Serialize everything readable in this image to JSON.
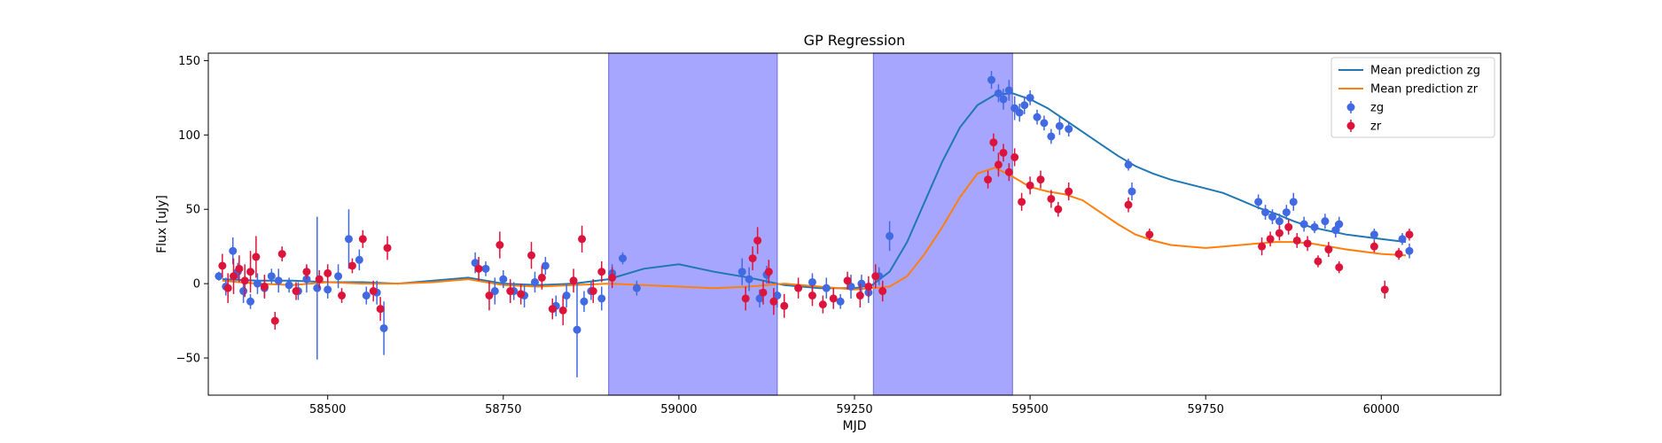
{
  "chart_data": {
    "type": "scatter",
    "title": "GP Regression",
    "xlabel": "MJD",
    "ylabel": "Flux [uJy]",
    "xlim": [
      58330,
      60170
    ],
    "ylim": [
      -75,
      155
    ],
    "xticks": [
      58500,
      58750,
      59000,
      59250,
      59500,
      59750,
      60000
    ],
    "yticks": [
      -50,
      0,
      50,
      100,
      150
    ],
    "grid": false,
    "legend_position": "top-right",
    "shaded_regions": [
      {
        "x0": 58900,
        "x1": 59140,
        "color": "#a6a6ff"
      },
      {
        "x0": 59277,
        "x1": 59475,
        "color": "#a6a6ff"
      }
    ],
    "series": [
      {
        "name": "Mean prediction zg",
        "kind": "line",
        "color": "#1f77b4",
        "x": [
          58350,
          58400,
          58450,
          58500,
          58550,
          58600,
          58650,
          58700,
          58750,
          58800,
          58850,
          58900,
          58950,
          59000,
          59050,
          59100,
          59150,
          59200,
          59250,
          59275,
          59300,
          59325,
          59350,
          59375,
          59400,
          59425,
          59450,
          59475,
          59500,
          59525,
          59550,
          59575,
          59600,
          59625,
          59650,
          59675,
          59700,
          59725,
          59750,
          59775,
          59800,
          59825,
          59850,
          59875,
          59900,
          59950,
          60000,
          60035
        ],
        "y": [
          3,
          2,
          2,
          1,
          1,
          0,
          2,
          4,
          0,
          -1,
          0,
          3,
          10,
          13,
          8,
          4,
          -1,
          -3,
          -3,
          -1,
          8,
          28,
          55,
          82,
          105,
          120,
          127,
          128,
          124,
          118,
          110,
          102,
          94,
          86,
          79,
          74,
          70,
          67,
          64,
          61,
          56,
          51,
          47,
          42,
          38,
          33,
          30,
          28
        ]
      },
      {
        "name": "Mean prediction zr",
        "kind": "line",
        "color": "#ff7f0e",
        "x": [
          58350,
          58400,
          58450,
          58500,
          58550,
          58600,
          58650,
          58700,
          58750,
          58800,
          58850,
          58900,
          58950,
          59000,
          59050,
          59100,
          59150,
          59200,
          59250,
          59275,
          59300,
          59325,
          59350,
          59375,
          59400,
          59425,
          59450,
          59475,
          59500,
          59525,
          59550,
          59575,
          59600,
          59625,
          59650,
          59675,
          59700,
          59725,
          59750,
          59775,
          59800,
          59825,
          59850,
          59875,
          59900,
          59950,
          60000,
          60035
        ],
        "y": [
          2,
          0,
          -1,
          1,
          0,
          0,
          1,
          3,
          -1,
          -2,
          -1,
          0,
          -1,
          -2,
          -3,
          -2,
          0,
          -2,
          -4,
          -3,
          -2,
          5,
          20,
          38,
          58,
          74,
          78,
          72,
          65,
          62,
          60,
          56,
          48,
          40,
          33,
          29,
          26,
          25,
          24,
          25,
          26,
          27,
          28,
          28,
          27,
          23,
          20,
          19
        ]
      },
      {
        "name": "zg",
        "kind": "errorbar",
        "color": "#4169e1",
        "x": [
          58345,
          58355,
          58365,
          58372,
          58380,
          58390,
          58400,
          58410,
          58420,
          58430,
          58445,
          58458,
          58470,
          58485,
          58500,
          58515,
          58530,
          58545,
          58555,
          58570,
          58580,
          58710,
          58725,
          58738,
          58750,
          58765,
          58780,
          58795,
          58810,
          58825,
          58840,
          58855,
          58865,
          58875,
          58890,
          58905,
          58920,
          58940,
          59090,
          59100,
          59115,
          59125,
          59140,
          59190,
          59210,
          59230,
          59245,
          59260,
          59270,
          59285,
          59300,
          59445,
          59455,
          59462,
          59470,
          59478,
          59485,
          59492,
          59500,
          59510,
          59520,
          59530,
          59542,
          59555,
          59640,
          59645,
          59825,
          59835,
          59845,
          59855,
          59865,
          59875,
          59890,
          59905,
          59920,
          59935,
          59940,
          59990,
          60030,
          60040
        ],
        "y": [
          5,
          -2,
          22,
          8,
          -5,
          -12,
          0,
          -3,
          5,
          2,
          -1,
          -5,
          3,
          -3,
          -4,
          5,
          30,
          16,
          -8,
          -6,
          -30,
          14,
          10,
          -5,
          3,
          -5,
          -8,
          1,
          12,
          -15,
          -8,
          -31,
          -12,
          -5,
          -10,
          7,
          17,
          -3,
          8,
          3,
          -10,
          6,
          -8,
          1,
          -3,
          -12,
          -2,
          0,
          -6,
          5,
          32,
          137,
          128,
          124,
          130,
          118,
          115,
          120,
          125,
          112,
          108,
          99,
          106,
          104,
          80,
          62,
          55,
          48,
          45,
          42,
          48,
          55,
          40,
          38,
          42,
          36,
          40,
          33,
          30,
          22
        ],
        "err": [
          3,
          6,
          9,
          6,
          8,
          5,
          7,
          6,
          5,
          8,
          5,
          6,
          9,
          48,
          6,
          8,
          20,
          7,
          6,
          8,
          18,
          7,
          5,
          9,
          6,
          6,
          8,
          7,
          6,
          7,
          8,
          32,
          7,
          6,
          8,
          6,
          4,
          5,
          9,
          8,
          6,
          6,
          8,
          6,
          7,
          5,
          8,
          6,
          7,
          6,
          10,
          6,
          6,
          7,
          7,
          8,
          6,
          6,
          5,
          5,
          5,
          5,
          6,
          5,
          4,
          6,
          5,
          5,
          5,
          5,
          5,
          6,
          5,
          4,
          5,
          5,
          5,
          4,
          4,
          5
        ]
      },
      {
        "name": "zr",
        "kind": "errorbar",
        "color": "#dc143c",
        "x": [
          58350,
          58358,
          58366,
          58374,
          58382,
          58390,
          58398,
          58410,
          58425,
          58435,
          58455,
          58470,
          58488,
          58500,
          58520,
          58535,
          58550,
          58565,
          58575,
          58585,
          58715,
          58730,
          58745,
          58760,
          58775,
          58790,
          58805,
          58820,
          58835,
          58850,
          58862,
          58878,
          58890,
          58905,
          59095,
          59105,
          59112,
          59120,
          59128,
          59135,
          59150,
          59170,
          59190,
          59205,
          59220,
          59240,
          59258,
          59270,
          59280,
          59290,
          59440,
          59448,
          59455,
          59462,
          59470,
          59478,
          59488,
          59500,
          59515,
          59530,
          59540,
          59555,
          59640,
          59670,
          59830,
          59842,
          59855,
          59868,
          59880,
          59895,
          59910,
          59925,
          59940,
          59990,
          60005,
          60025,
          60040
        ],
        "y": [
          12,
          -3,
          5,
          10,
          2,
          8,
          18,
          -2,
          -25,
          20,
          -5,
          8,
          3,
          7,
          -8,
          12,
          30,
          -5,
          -17,
          24,
          10,
          -8,
          26,
          -5,
          -7,
          19,
          4,
          -17,
          -18,
          2,
          30,
          -5,
          8,
          4,
          -10,
          17,
          29,
          -6,
          8,
          -12,
          -15,
          -3,
          -8,
          -14,
          -10,
          2,
          -8,
          -2,
          5,
          -5,
          70,
          95,
          80,
          88,
          75,
          85,
          55,
          66,
          70,
          57,
          50,
          62,
          53,
          33,
          25,
          30,
          34,
          38,
          29,
          27,
          15,
          23,
          11,
          25,
          -4,
          20,
          33
        ],
        "err": [
          8,
          10,
          12,
          9,
          11,
          14,
          14,
          8,
          6,
          5,
          6,
          5,
          6,
          6,
          5,
          5,
          6,
          7,
          8,
          8,
          8,
          10,
          9,
          8,
          7,
          9,
          8,
          7,
          10,
          8,
          9,
          8,
          7,
          7,
          8,
          8,
          9,
          8,
          8,
          9,
          8,
          7,
          7,
          6,
          7,
          6,
          8,
          7,
          8,
          7,
          6,
          6,
          8,
          6,
          6,
          6,
          6,
          6,
          6,
          6,
          5,
          6,
          5,
          4,
          6,
          5,
          5,
          5,
          5,
          5,
          4,
          5,
          4,
          4,
          6,
          4,
          4
        ]
      }
    ]
  }
}
